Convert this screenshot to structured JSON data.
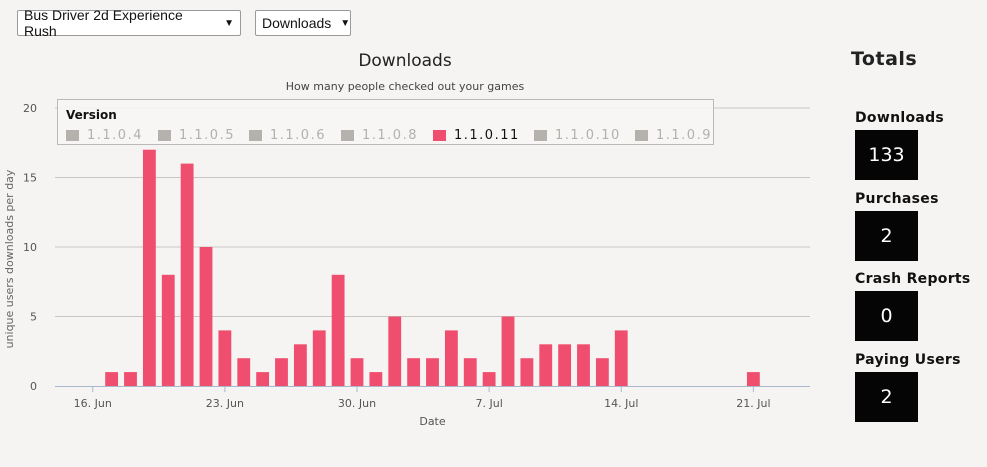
{
  "selectors": {
    "game": "Bus Driver 2d Experience Rush",
    "metric": "Downloads",
    "caret": "▼"
  },
  "chart_data": {
    "type": "bar",
    "title": "Downloads",
    "subtitle": "How many people checked out your games",
    "xlabel": "Date",
    "ylabel": "unique users downloads per day",
    "ylim": [
      0,
      20
    ],
    "yticks": [
      0,
      5,
      10,
      15,
      20
    ],
    "xlim": [
      "2014-06-14",
      "2014-07-24"
    ],
    "xticks": [
      {
        "date": "2014-06-16",
        "label": "16. Jun"
      },
      {
        "date": "2014-06-23",
        "label": "23. Jun"
      },
      {
        "date": "2014-06-30",
        "label": "30. Jun"
      },
      {
        "date": "2014-07-07",
        "label": "7. Jul"
      },
      {
        "date": "2014-07-14",
        "label": "14. Jul"
      },
      {
        "date": "2014-07-21",
        "label": "21. Jul"
      }
    ],
    "grid": true,
    "bar_color": "#f04e6e",
    "series": [
      {
        "name": "1.1.0.11",
        "points": [
          {
            "date": "2014-06-17",
            "value": 1
          },
          {
            "date": "2014-06-18",
            "value": 1
          },
          {
            "date": "2014-06-19",
            "value": 17
          },
          {
            "date": "2014-06-20",
            "value": 8
          },
          {
            "date": "2014-06-21",
            "value": 16
          },
          {
            "date": "2014-06-22",
            "value": 10
          },
          {
            "date": "2014-06-23",
            "value": 4
          },
          {
            "date": "2014-06-24",
            "value": 2
          },
          {
            "date": "2014-06-25",
            "value": 1
          },
          {
            "date": "2014-06-26",
            "value": 2
          },
          {
            "date": "2014-06-27",
            "value": 3
          },
          {
            "date": "2014-06-28",
            "value": 4
          },
          {
            "date": "2014-06-29",
            "value": 8
          },
          {
            "date": "2014-06-30",
            "value": 2
          },
          {
            "date": "2014-07-01",
            "value": 1
          },
          {
            "date": "2014-07-02",
            "value": 5
          },
          {
            "date": "2014-07-03",
            "value": 2
          },
          {
            "date": "2014-07-04",
            "value": 2
          },
          {
            "date": "2014-07-05",
            "value": 4
          },
          {
            "date": "2014-07-06",
            "value": 2
          },
          {
            "date": "2014-07-07",
            "value": 1
          },
          {
            "date": "2014-07-08",
            "value": 5
          },
          {
            "date": "2014-07-09",
            "value": 2
          },
          {
            "date": "2014-07-10",
            "value": 3
          },
          {
            "date": "2014-07-11",
            "value": 3
          },
          {
            "date": "2014-07-12",
            "value": 3
          },
          {
            "date": "2014-07-13",
            "value": 2
          },
          {
            "date": "2014-07-14",
            "value": 4
          },
          {
            "date": "2014-07-21",
            "value": 1
          }
        ]
      }
    ],
    "legend": {
      "title": "Version",
      "placement": "top",
      "items": [
        {
          "label": "1.1.0.4",
          "active": false
        },
        {
          "label": "1.1.0.5",
          "active": false
        },
        {
          "label": "1.1.0.6",
          "active": false
        },
        {
          "label": "1.1.0.8",
          "active": false
        },
        {
          "label": "1.1.0.11",
          "active": true
        },
        {
          "label": "1.1.0.10",
          "active": false
        },
        {
          "label": "1.1.0.9",
          "active": false
        }
      ]
    }
  },
  "totals": {
    "title": "Totals",
    "items": [
      {
        "label": "Downloads",
        "value": "133"
      },
      {
        "label": "Purchases",
        "value": "2"
      },
      {
        "label": "Crash Reports",
        "value": "0"
      },
      {
        "label": "Paying Users",
        "value": "2"
      }
    ]
  }
}
